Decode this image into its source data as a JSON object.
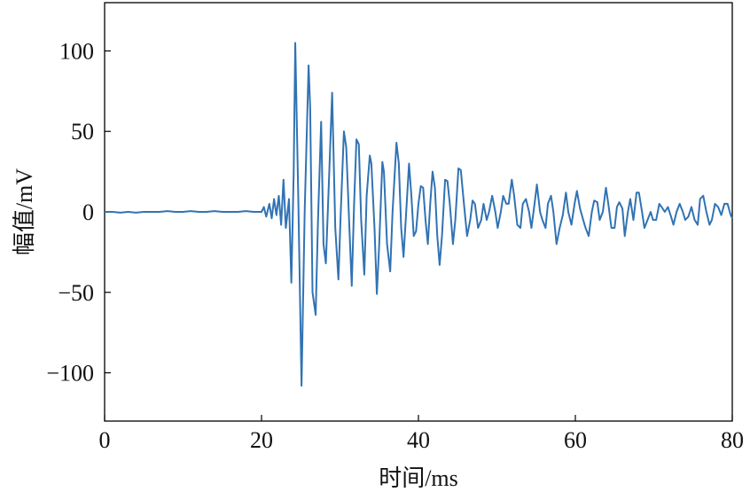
{
  "chart_data": {
    "type": "line",
    "xlabel": "时间/ms",
    "ylabel": "幅值/mV",
    "xlim": [
      0,
      80
    ],
    "xticks": [
      0,
      20,
      40,
      60,
      80
    ],
    "ylim": [
      -130,
      130
    ],
    "yticks": [
      {
        "value": -100,
        "label": "−100"
      },
      {
        "value": -50,
        "label": "−50"
      },
      0,
      50,
      100
    ],
    "grid": false,
    "series": [
      {
        "color": "#3173b3",
        "x": [
          0,
          1,
          2,
          3,
          4,
          5,
          6,
          7,
          8,
          9,
          10,
          11,
          12,
          13,
          14,
          15,
          16,
          17,
          18,
          19,
          20,
          20.3,
          20.6,
          21,
          21.3,
          21.6,
          21.9,
          22.2,
          22.5,
          22.8,
          23.1,
          23.5,
          23.8,
          24.1,
          24.3,
          24.7,
          25.1,
          25.5,
          26.0,
          26.2,
          26.5,
          26.9,
          27.2,
          27.6,
          27.9,
          28.2,
          28.6,
          29.0,
          29.4,
          29.8,
          30.1,
          30.5,
          30.8,
          31.2,
          31.5,
          31.8,
          32.1,
          32.4,
          32.7,
          33.1,
          33.4,
          33.8,
          34.0,
          34.4,
          34.7,
          35.0,
          35.4,
          35.6,
          36.0,
          36.4,
          36.7,
          37.2,
          37.5,
          37.8,
          38.1,
          38.5,
          38.8,
          39.1,
          39.4,
          39.7,
          40.0,
          40.3,
          40.6,
          40.9,
          41.2,
          41.5,
          41.8,
          42.1,
          42.4,
          42.7,
          43.0,
          43.4,
          43.7,
          44.0,
          44.4,
          44.7,
          45.1,
          45.4,
          45.8,
          46.2,
          46.6,
          46.9,
          47.2,
          47.6,
          48.0,
          48.3,
          48.7,
          49.0,
          49.4,
          49.8,
          50.1,
          50.5,
          50.8,
          51.2,
          51.5,
          51.9,
          52.2,
          52.6,
          53.0,
          53.3,
          53.7,
          54.1,
          54.4,
          54.8,
          55.1,
          55.5,
          55.8,
          56.2,
          56.5,
          56.9,
          57.2,
          57.6,
          58.0,
          58.4,
          58.8,
          59.1,
          59.5,
          59.9,
          60.2,
          60.6,
          61.0,
          61.3,
          61.7,
          62.1,
          62.4,
          62.8,
          63.1,
          63.5,
          63.9,
          64.2,
          64.6,
          65.0,
          65.3,
          65.6,
          66.0,
          66.3,
          66.7,
          67.0,
          67.4,
          67.8,
          68.1,
          68.5,
          68.8,
          69.2,
          69.6,
          69.9,
          70.3,
          70.7,
          71.0,
          71.4,
          71.8,
          72.2,
          72.5,
          72.9,
          73.3,
          73.7,
          74.0,
          74.4,
          74.8,
          75.2,
          75.6,
          75.9,
          76.3,
          76.7,
          77.1,
          77.4,
          77.8,
          78.2,
          78.6,
          79.0,
          79.4,
          79.8,
          80
        ],
        "values": [
          0,
          0,
          -0.5,
          0,
          -0.5,
          0,
          0,
          0,
          0.5,
          0,
          0,
          0.5,
          0,
          0,
          0.5,
          0,
          0,
          0,
          0.5,
          0,
          0,
          3,
          -3,
          5,
          -4,
          8,
          -2,
          10,
          -8,
          20,
          -10,
          8,
          -44,
          25,
          105,
          5,
          -108,
          0,
          91,
          65,
          -50,
          -64,
          -5,
          56,
          -20,
          -32,
          20,
          74,
          -10,
          -42,
          0,
          50,
          40,
          -10,
          -46,
          5,
          45,
          42,
          -5,
          -39,
          10,
          35,
          30,
          -10,
          -51,
          -20,
          31,
          25,
          -20,
          -37,
          0,
          43,
          30,
          -10,
          -28,
          5,
          30,
          10,
          -15,
          -12,
          5,
          16,
          15,
          -5,
          -20,
          5,
          25,
          15,
          -15,
          -33,
          -15,
          20,
          19,
          5,
          -20,
          -5,
          27,
          26,
          5,
          -15,
          -5,
          7,
          5,
          -10,
          -5,
          5,
          -5,
          0,
          10,
          0,
          -10,
          0,
          10,
          5,
          5,
          20,
          10,
          -8,
          -10,
          5,
          8,
          0,
          -10,
          5,
          17,
          0,
          -5,
          -10,
          5,
          10,
          0,
          -20,
          -10,
          -2,
          12,
          0,
          -8,
          5,
          13,
          2,
          -5,
          -10,
          -15,
          0,
          7,
          6,
          -5,
          0,
          15,
          5,
          -10,
          -10,
          3,
          6,
          2,
          -15,
          0,
          8,
          -5,
          12,
          12,
          0,
          -10,
          -5,
          0,
          -5,
          -5,
          5,
          3,
          0,
          3,
          -3,
          -8,
          0,
          5,
          0,
          -5,
          -3,
          3,
          -5,
          -8,
          8,
          10,
          0,
          -8,
          -5,
          5,
          3,
          -2,
          5,
          5,
          -2,
          -4
        ]
      }
    ]
  }
}
